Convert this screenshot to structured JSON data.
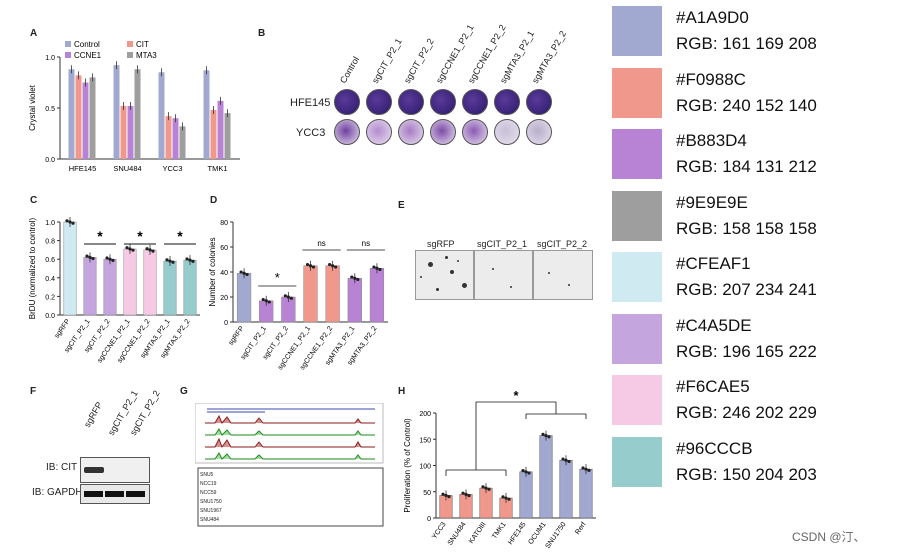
{
  "panel_letters": [
    "A",
    "B",
    "C",
    "D",
    "E",
    "F",
    "G",
    "H"
  ],
  "colors": {
    "control": "#A1A9D0",
    "cit": "#F0988C",
    "ccne1": "#B883D4",
    "mta3": "#9E9E9E",
    "sgrfp": "#CFEAF1",
    "sgcit": "#C4A5DE",
    "sgccne1": "#F6CAE5",
    "sgmta3": "#96CCCB"
  },
  "swatches": [
    {
      "hex": "#A1A9D0",
      "rgb": "RGB: 161 169 208"
    },
    {
      "hex": "#F0988C",
      "rgb": "RGB: 240 152 140"
    },
    {
      "hex": "#B883D4",
      "rgb": "RGB: 184 131 212"
    },
    {
      "hex": "#9E9E9E",
      "rgb": "RGB: 158 158 158"
    },
    {
      "hex": "#CFEAF1",
      "rgb": "RGB: 207 234 241"
    },
    {
      "hex": "#C4A5DE",
      "rgb": "RGB: 196 165 222"
    },
    {
      "hex": "#F6CAE5",
      "rgb": "RGB: 246 202 229"
    },
    {
      "hex": "#96CCCB",
      "rgb": "RGB: 150 204 203"
    }
  ],
  "panel_b": {
    "columns": [
      "Control",
      "sgCIT_P2_1",
      "sgCIT_P2_2",
      "sgCCNE1_P2_1",
      "sgCCNE1_P2_2",
      "sgMTA3_P2_1",
      "sgMTA3_P2_2"
    ],
    "rows": [
      "HFE145",
      "YCC3"
    ]
  },
  "panel_e": {
    "labels": [
      "sgRFP",
      "sgCIT_P2_1",
      "sgCIT_P2_2"
    ]
  },
  "panel_f": {
    "lanes": [
      "sgRFP",
      "sgCIT_P2_1",
      "sgCIT_P2_2"
    ],
    "bands": [
      "IB: CIT",
      "IB: GAPDH"
    ]
  },
  "panel_g": {
    "tracks": [
      "SNU5",
      "NCC19",
      "NCC59",
      "SNU1750",
      "SNU1967",
      "SNU484"
    ]
  },
  "watermark": "CSDN @汀、",
  "chart_data": [
    {
      "id": "A",
      "type": "bar",
      "ylabel": "Crystal violet",
      "ylim": [
        0,
        1.0
      ],
      "yticks": [
        0,
        0.5,
        1.0
      ],
      "categories": [
        "HFE145",
        "SNU484",
        "YCC3",
        "TMK1"
      ],
      "series": [
        {
          "name": "Control",
          "color": "#A1A9D0",
          "values": [
            0.88,
            0.92,
            0.85,
            0.87
          ]
        },
        {
          "name": "CIT",
          "color": "#F0988C",
          "values": [
            0.82,
            0.52,
            0.42,
            0.48
          ]
        },
        {
          "name": "CCNE1",
          "color": "#B883D4",
          "values": [
            0.75,
            0.52,
            0.4,
            0.57
          ]
        },
        {
          "name": "MTA3",
          "color": "#9E9E9E",
          "values": [
            0.8,
            0.88,
            0.32,
            0.45
          ]
        }
      ]
    },
    {
      "id": "C",
      "type": "bar",
      "ylabel": "BrDU (normalized to control)",
      "ylim": [
        0,
        1.0
      ],
      "yticks": [
        0.0,
        0.2,
        0.4,
        0.6,
        0.8,
        1.0
      ],
      "categories": [
        "sgRFP",
        "sgCIT_P2_1",
        "sgCIT_P2_2",
        "sgCCNE1_P2_1",
        "sgCCNE1_P2_2",
        "sgMTA3_P2_1",
        "sgMTA3_P2_2"
      ],
      "colors": [
        "#CFEAF1",
        "#C4A5DE",
        "#C4A5DE",
        "#F6CAE5",
        "#F6CAE5",
        "#96CCCB",
        "#96CCCB"
      ],
      "values": [
        1.0,
        0.62,
        0.6,
        0.71,
        0.7,
        0.58,
        0.59
      ],
      "annotations": [
        "*",
        "*",
        "*"
      ]
    },
    {
      "id": "D",
      "type": "bar",
      "ylabel": "Number of colonies",
      "ylim": [
        0,
        80
      ],
      "yticks": [
        0,
        20,
        40,
        60,
        80
      ],
      "categories": [
        "sgRFP",
        "sgCIT_P2_1",
        "sgCIT_P2_2",
        "sgCCNE1_P2_1",
        "sgCCNE1_P2_2",
        "sgMTA3_P2_1",
        "sgMTA3_P2_2"
      ],
      "colors": [
        "#A1A9D0",
        "#B883D4",
        "#B883D4",
        "#F0988C",
        "#F0988C",
        "#B883D4",
        "#B883D4"
      ],
      "values": [
        39,
        17,
        20,
        45,
        45,
        35,
        43
      ],
      "annotations": [
        "*",
        "ns",
        "ns"
      ]
    },
    {
      "id": "H",
      "type": "bar",
      "ylabel": "Proliferation (% of Control)",
      "ylim": [
        0,
        200
      ],
      "yticks": [
        0,
        50,
        100,
        150,
        200
      ],
      "categories": [
        "YCC3",
        "SNU484",
        "KATOIII",
        "TMK1",
        "HFE145",
        "OCUM1",
        "SNU1750",
        "Rerf"
      ],
      "colors": [
        "#F0988C",
        "#F0988C",
        "#F0988C",
        "#F0988C",
        "#A1A9D0",
        "#A1A9D0",
        "#A1A9D0",
        "#A1A9D0"
      ],
      "values": [
        43,
        45,
        57,
        38,
        88,
        157,
        110,
        93
      ],
      "annotations": [
        "*"
      ]
    }
  ]
}
